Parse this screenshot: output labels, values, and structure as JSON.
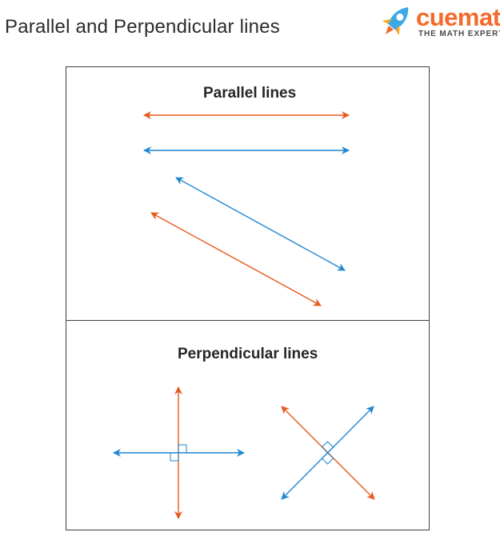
{
  "header": {
    "title": "Parallel and Perpendicular lines",
    "logo_word": "cuemath",
    "logo_tagline": "THE MATH EXPERT",
    "logo_icon": "rocket-icon"
  },
  "sections": {
    "parallel_title": "Parallel lines",
    "perpendicular_title": "Perpendicular lines"
  },
  "colors": {
    "orange": "#e8581c",
    "blue": "#1f86d1",
    "brand": "#f56a2a",
    "rocket_blue": "#3aa9e6"
  }
}
